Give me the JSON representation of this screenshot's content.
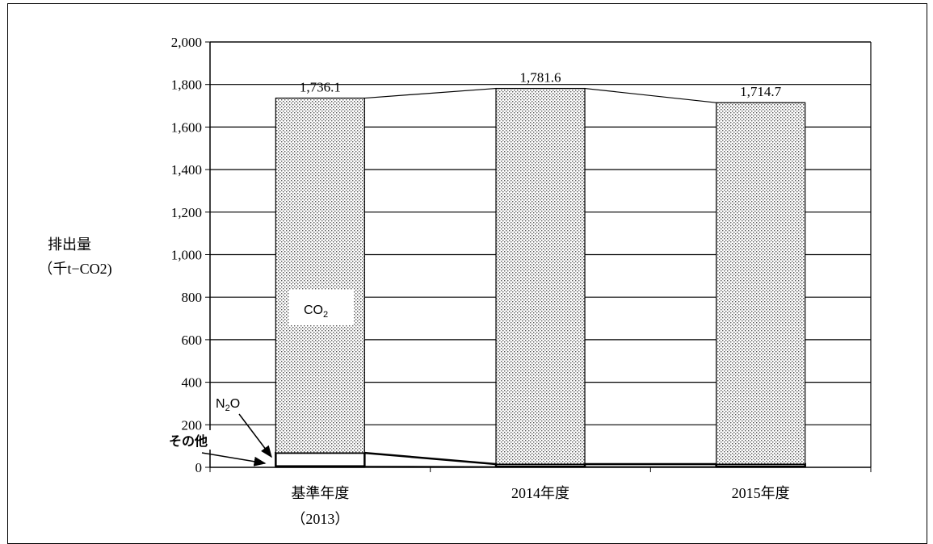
{
  "chart_data": {
    "type": "bar",
    "stacked": true,
    "categories": [
      "基準年度",
      "2014年度",
      "2015年度"
    ],
    "category_sublabels": [
      "（2013）",
      "",
      ""
    ],
    "series": [
      {
        "name": "その他",
        "values": [
          5,
          3,
          3
        ]
      },
      {
        "name": "N2O",
        "values": [
          63,
          12,
          12
        ]
      },
      {
        "name": "CO2",
        "values": [
          1668.1,
          1766.6,
          1699.7
        ]
      }
    ],
    "totals": [
      1736.1,
      1781.6,
      1714.7
    ],
    "total_labels": [
      "1,736.1",
      "1,781.6",
      "1,714.7"
    ],
    "ylabel_line1": "排出量",
    "ylabel_line2": "（千t−CO2)",
    "ylim": [
      0,
      2000
    ],
    "yticks": [
      0,
      200,
      400,
      600,
      800,
      1000,
      1200,
      1400,
      1600,
      1800,
      2000
    ],
    "ytick_labels": [
      "0",
      "200",
      "400",
      "600",
      "800",
      "1,000",
      "1,200",
      "1,400",
      "1,600",
      "1,800",
      "2,000"
    ],
    "grid": true,
    "annotations": {
      "co2": {
        "main": "CO",
        "sub": "2"
      },
      "n2o": {
        "main": "N",
        "sub": "2",
        "tail": "O"
      },
      "other": "その他"
    }
  }
}
